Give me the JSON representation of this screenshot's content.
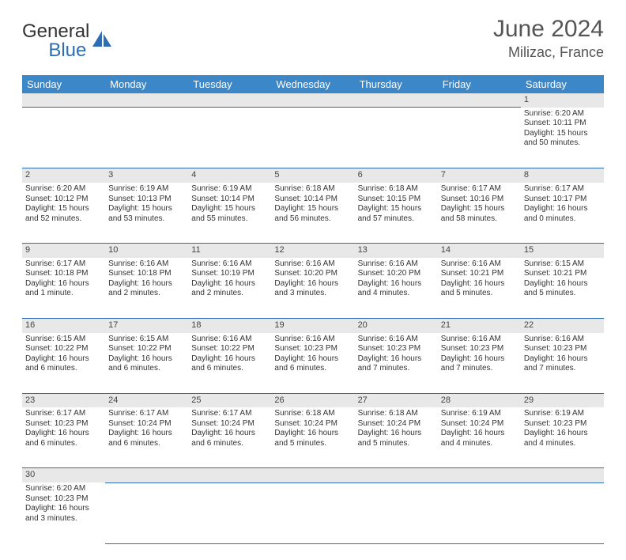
{
  "colors": {
    "header_bg": "#3b87c8",
    "header_text": "#ffffff",
    "border": "#2d6db3",
    "daynum_bg": "#e8e8e8",
    "text": "#333333",
    "title": "#555555"
  },
  "logo": {
    "part1": "General",
    "part2": "Blue"
  },
  "title": {
    "month": "June 2024",
    "location": "Milizac, France"
  },
  "day_headers": [
    "Sunday",
    "Monday",
    "Tuesday",
    "Wednesday",
    "Thursday",
    "Friday",
    "Saturday"
  ],
  "weeks": [
    [
      null,
      null,
      null,
      null,
      null,
      null,
      {
        "n": "1",
        "sr": "Sunrise: 6:20 AM",
        "ss": "Sunset: 10:11 PM",
        "d1": "Daylight: 15 hours",
        "d2": "and 50 minutes."
      }
    ],
    [
      {
        "n": "2",
        "sr": "Sunrise: 6:20 AM",
        "ss": "Sunset: 10:12 PM",
        "d1": "Daylight: 15 hours",
        "d2": "and 52 minutes."
      },
      {
        "n": "3",
        "sr": "Sunrise: 6:19 AM",
        "ss": "Sunset: 10:13 PM",
        "d1": "Daylight: 15 hours",
        "d2": "and 53 minutes."
      },
      {
        "n": "4",
        "sr": "Sunrise: 6:19 AM",
        "ss": "Sunset: 10:14 PM",
        "d1": "Daylight: 15 hours",
        "d2": "and 55 minutes."
      },
      {
        "n": "5",
        "sr": "Sunrise: 6:18 AM",
        "ss": "Sunset: 10:14 PM",
        "d1": "Daylight: 15 hours",
        "d2": "and 56 minutes."
      },
      {
        "n": "6",
        "sr": "Sunrise: 6:18 AM",
        "ss": "Sunset: 10:15 PM",
        "d1": "Daylight: 15 hours",
        "d2": "and 57 minutes."
      },
      {
        "n": "7",
        "sr": "Sunrise: 6:17 AM",
        "ss": "Sunset: 10:16 PM",
        "d1": "Daylight: 15 hours",
        "d2": "and 58 minutes."
      },
      {
        "n": "8",
        "sr": "Sunrise: 6:17 AM",
        "ss": "Sunset: 10:17 PM",
        "d1": "Daylight: 16 hours",
        "d2": "and 0 minutes."
      }
    ],
    [
      {
        "n": "9",
        "sr": "Sunrise: 6:17 AM",
        "ss": "Sunset: 10:18 PM",
        "d1": "Daylight: 16 hours",
        "d2": "and 1 minute."
      },
      {
        "n": "10",
        "sr": "Sunrise: 6:16 AM",
        "ss": "Sunset: 10:18 PM",
        "d1": "Daylight: 16 hours",
        "d2": "and 2 minutes."
      },
      {
        "n": "11",
        "sr": "Sunrise: 6:16 AM",
        "ss": "Sunset: 10:19 PM",
        "d1": "Daylight: 16 hours",
        "d2": "and 2 minutes."
      },
      {
        "n": "12",
        "sr": "Sunrise: 6:16 AM",
        "ss": "Sunset: 10:20 PM",
        "d1": "Daylight: 16 hours",
        "d2": "and 3 minutes."
      },
      {
        "n": "13",
        "sr": "Sunrise: 6:16 AM",
        "ss": "Sunset: 10:20 PM",
        "d1": "Daylight: 16 hours",
        "d2": "and 4 minutes."
      },
      {
        "n": "14",
        "sr": "Sunrise: 6:16 AM",
        "ss": "Sunset: 10:21 PM",
        "d1": "Daylight: 16 hours",
        "d2": "and 5 minutes."
      },
      {
        "n": "15",
        "sr": "Sunrise: 6:15 AM",
        "ss": "Sunset: 10:21 PM",
        "d1": "Daylight: 16 hours",
        "d2": "and 5 minutes."
      }
    ],
    [
      {
        "n": "16",
        "sr": "Sunrise: 6:15 AM",
        "ss": "Sunset: 10:22 PM",
        "d1": "Daylight: 16 hours",
        "d2": "and 6 minutes."
      },
      {
        "n": "17",
        "sr": "Sunrise: 6:15 AM",
        "ss": "Sunset: 10:22 PM",
        "d1": "Daylight: 16 hours",
        "d2": "and 6 minutes."
      },
      {
        "n": "18",
        "sr": "Sunrise: 6:16 AM",
        "ss": "Sunset: 10:22 PM",
        "d1": "Daylight: 16 hours",
        "d2": "and 6 minutes."
      },
      {
        "n": "19",
        "sr": "Sunrise: 6:16 AM",
        "ss": "Sunset: 10:23 PM",
        "d1": "Daylight: 16 hours",
        "d2": "and 6 minutes."
      },
      {
        "n": "20",
        "sr": "Sunrise: 6:16 AM",
        "ss": "Sunset: 10:23 PM",
        "d1": "Daylight: 16 hours",
        "d2": "and 7 minutes."
      },
      {
        "n": "21",
        "sr": "Sunrise: 6:16 AM",
        "ss": "Sunset: 10:23 PM",
        "d1": "Daylight: 16 hours",
        "d2": "and 7 minutes."
      },
      {
        "n": "22",
        "sr": "Sunrise: 6:16 AM",
        "ss": "Sunset: 10:23 PM",
        "d1": "Daylight: 16 hours",
        "d2": "and 7 minutes."
      }
    ],
    [
      {
        "n": "23",
        "sr": "Sunrise: 6:17 AM",
        "ss": "Sunset: 10:23 PM",
        "d1": "Daylight: 16 hours",
        "d2": "and 6 minutes."
      },
      {
        "n": "24",
        "sr": "Sunrise: 6:17 AM",
        "ss": "Sunset: 10:24 PM",
        "d1": "Daylight: 16 hours",
        "d2": "and 6 minutes."
      },
      {
        "n": "25",
        "sr": "Sunrise: 6:17 AM",
        "ss": "Sunset: 10:24 PM",
        "d1": "Daylight: 16 hours",
        "d2": "and 6 minutes."
      },
      {
        "n": "26",
        "sr": "Sunrise: 6:18 AM",
        "ss": "Sunset: 10:24 PM",
        "d1": "Daylight: 16 hours",
        "d2": "and 5 minutes."
      },
      {
        "n": "27",
        "sr": "Sunrise: 6:18 AM",
        "ss": "Sunset: 10:24 PM",
        "d1": "Daylight: 16 hours",
        "d2": "and 5 minutes."
      },
      {
        "n": "28",
        "sr": "Sunrise: 6:19 AM",
        "ss": "Sunset: 10:24 PM",
        "d1": "Daylight: 16 hours",
        "d2": "and 4 minutes."
      },
      {
        "n": "29",
        "sr": "Sunrise: 6:19 AM",
        "ss": "Sunset: 10:23 PM",
        "d1": "Daylight: 16 hours",
        "d2": "and 4 minutes."
      }
    ],
    [
      {
        "n": "30",
        "sr": "Sunrise: 6:20 AM",
        "ss": "Sunset: 10:23 PM",
        "d1": "Daylight: 16 hours",
        "d2": "and 3 minutes."
      },
      null,
      null,
      null,
      null,
      null,
      null
    ]
  ]
}
